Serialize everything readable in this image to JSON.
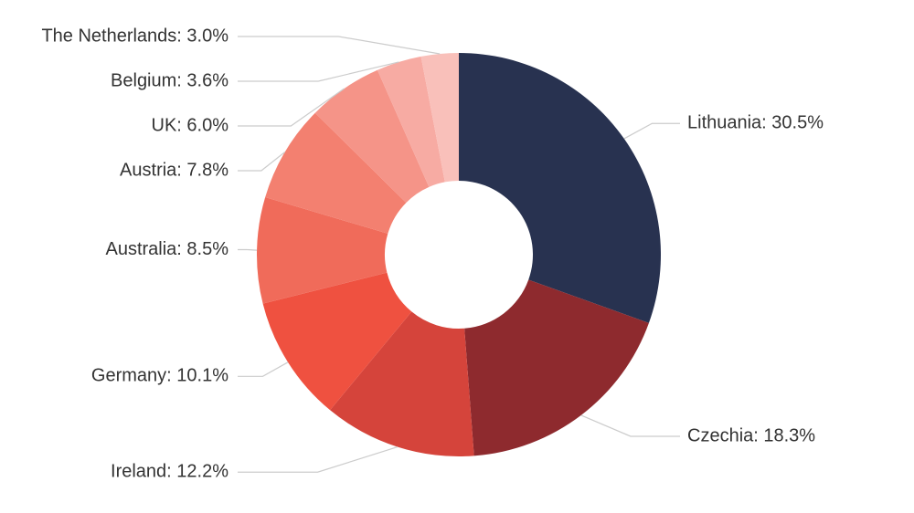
{
  "chart_data": {
    "type": "donut",
    "values": [
      30.5,
      18.3,
      12.2,
      10.1,
      8.5,
      7.8,
      6.0,
      3.6,
      3.0
    ],
    "value_labels": [
      "Lithuania: 30.5%",
      "Czechia: 18.3%",
      "Ireland: 12.2%",
      "Germany: 10.1%",
      "Australia: 8.5%",
      "Austria: 7.8%",
      "UK: 6.0%",
      "Belgium: 3.6%",
      "The Netherlands: 3.0%"
    ],
    "colors": [
      "#283250",
      "#8e2a2e",
      "#d5443b",
      "#ef5140",
      "#f06b5a",
      "#f38070",
      "#f59488",
      "#f7aba3",
      "#f9c0ba"
    ]
  }
}
